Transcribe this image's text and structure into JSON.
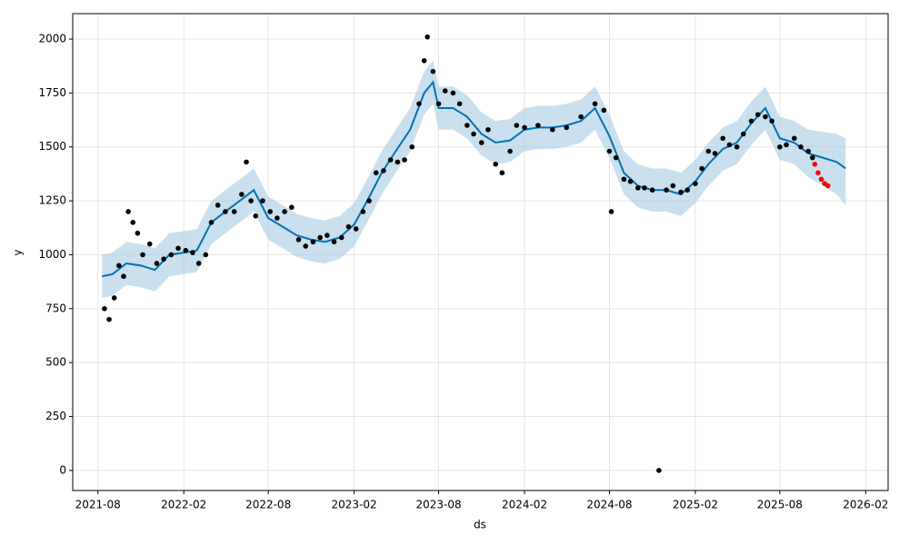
{
  "chart_data": {
    "type": "line",
    "xlabel": "ds",
    "ylabel": "y",
    "grid": true,
    "xlim": [
      "2021-06-08",
      "2026-03-21"
    ],
    "ylim": [
      -93,
      2118
    ],
    "xticks": [
      {
        "value": "2021-08-01",
        "label": "2021-08"
      },
      {
        "value": "2022-02-01",
        "label": "2022-02"
      },
      {
        "value": "2022-08-01",
        "label": "2022-08"
      },
      {
        "value": "2023-02-01",
        "label": "2023-02"
      },
      {
        "value": "2023-08-01",
        "label": "2023-08"
      },
      {
        "value": "2024-02-01",
        "label": "2024-02"
      },
      {
        "value": "2024-08-01",
        "label": "2024-08"
      },
      {
        "value": "2025-02-01",
        "label": "2025-02"
      },
      {
        "value": "2025-08-01",
        "label": "2025-08"
      },
      {
        "value": "2026-02-01",
        "label": "2026-02"
      }
    ],
    "yticks": [
      0,
      250,
      500,
      750,
      1000,
      1250,
      1500,
      1750,
      2000
    ],
    "forecast": {
      "color": "#0072b2",
      "band_color": "#a6cbe3",
      "x": [
        "2021-08-10",
        "2021-09-01",
        "2021-10-01",
        "2021-11-01",
        "2021-12-01",
        "2022-01-01",
        "2022-02-01",
        "2022-03-01",
        "2022-04-01",
        "2022-05-01",
        "2022-06-01",
        "2022-07-01",
        "2022-08-01",
        "2022-09-01",
        "2022-10-01",
        "2022-11-01",
        "2022-12-01",
        "2023-01-01",
        "2023-02-01",
        "2023-03-01",
        "2023-04-01",
        "2023-05-01",
        "2023-06-01",
        "2023-07-01",
        "2023-07-20",
        "2023-08-01",
        "2023-09-01",
        "2023-10-01",
        "2023-11-01",
        "2023-12-01",
        "2024-01-01",
        "2024-02-01",
        "2024-03-01",
        "2024-04-01",
        "2024-05-01",
        "2024-06-01",
        "2024-07-01",
        "2024-08-01",
        "2024-09-01",
        "2024-10-01",
        "2024-11-01",
        "2024-12-01",
        "2025-01-01",
        "2025-02-01",
        "2025-03-01",
        "2025-04-01",
        "2025-05-01",
        "2025-06-01",
        "2025-07-01",
        "2025-08-01",
        "2025-09-01",
        "2025-10-01",
        "2025-11-01",
        "2025-12-01",
        "2025-12-20"
      ],
      "values": [
        900,
        910,
        960,
        950,
        930,
        1000,
        1010,
        1020,
        1150,
        1200,
        1250,
        1300,
        1170,
        1130,
        1090,
        1070,
        1060,
        1080,
        1140,
        1250,
        1380,
        1480,
        1580,
        1750,
        1800,
        1680,
        1680,
        1640,
        1560,
        1520,
        1530,
        1580,
        1590,
        1590,
        1600,
        1620,
        1680,
        1550,
        1380,
        1320,
        1300,
        1300,
        1280,
        1340,
        1420,
        1490,
        1520,
        1610,
        1680,
        1540,
        1520,
        1470,
        1450,
        1430,
        1400
      ],
      "lower": [
        800,
        810,
        860,
        850,
        830,
        900,
        910,
        920,
        1050,
        1100,
        1150,
        1200,
        1070,
        1030,
        990,
        970,
        960,
        980,
        1040,
        1150,
        1280,
        1380,
        1480,
        1650,
        1700,
        1580,
        1580,
        1540,
        1460,
        1420,
        1430,
        1480,
        1490,
        1490,
        1500,
        1520,
        1580,
        1450,
        1280,
        1220,
        1200,
        1200,
        1180,
        1240,
        1320,
        1390,
        1420,
        1510,
        1580,
        1440,
        1420,
        1360,
        1320,
        1280,
        1230
      ],
      "upper": [
        1000,
        1010,
        1060,
        1050,
        1030,
        1100,
        1110,
        1120,
        1250,
        1300,
        1350,
        1400,
        1270,
        1230,
        1190,
        1170,
        1160,
        1180,
        1240,
        1350,
        1480,
        1580,
        1680,
        1850,
        1900,
        1780,
        1780,
        1740,
        1660,
        1620,
        1630,
        1680,
        1690,
        1690,
        1700,
        1720,
        1780,
        1650,
        1480,
        1420,
        1400,
        1400,
        1380,
        1440,
        1520,
        1590,
        1620,
        1710,
        1780,
        1640,
        1620,
        1580,
        1570,
        1560,
        1540
      ]
    },
    "observed": {
      "color": "#000000",
      "x": [
        "2021-08-15",
        "2021-08-25",
        "2021-09-05",
        "2021-09-15",
        "2021-09-25",
        "2021-10-05",
        "2021-10-15",
        "2021-10-25",
        "2021-11-05",
        "2021-11-20",
        "2021-12-05",
        "2021-12-20",
        "2022-01-05",
        "2022-01-20",
        "2022-02-05",
        "2022-02-20",
        "2022-03-05",
        "2022-03-20",
        "2022-04-01",
        "2022-04-15",
        "2022-05-01",
        "2022-05-20",
        "2022-06-05",
        "2022-06-15",
        "2022-06-25",
        "2022-07-05",
        "2022-07-20",
        "2022-08-05",
        "2022-08-20",
        "2022-09-05",
        "2022-09-20",
        "2022-10-05",
        "2022-10-20",
        "2022-11-05",
        "2022-11-20",
        "2022-12-05",
        "2022-12-20",
        "2023-01-05",
        "2023-01-20",
        "2023-02-05",
        "2023-02-20",
        "2023-03-05",
        "2023-03-20",
        "2023-04-05",
        "2023-04-20",
        "2023-05-05",
        "2023-05-20",
        "2023-06-05",
        "2023-06-20",
        "2023-07-01",
        "2023-07-08",
        "2023-07-20",
        "2023-08-01",
        "2023-08-15",
        "2023-09-01",
        "2023-09-15",
        "2023-10-01",
        "2023-10-15",
        "2023-11-01",
        "2023-11-15",
        "2023-12-01",
        "2023-12-15",
        "2024-01-01",
        "2024-01-15",
        "2024-02-01",
        "2024-03-01",
        "2024-04-01",
        "2024-05-01",
        "2024-06-01",
        "2024-07-01",
        "2024-07-20",
        "2024-08-01",
        "2024-08-05",
        "2024-08-15",
        "2024-09-01",
        "2024-09-15",
        "2024-10-01",
        "2024-10-15",
        "2024-11-01",
        "2024-11-15",
        "2024-12-01",
        "2024-12-15",
        "2025-01-01",
        "2025-01-15",
        "2025-02-01",
        "2025-02-15",
        "2025-03-01",
        "2025-03-15",
        "2025-04-01",
        "2025-04-15",
        "2025-05-01",
        "2025-05-15",
        "2025-06-01",
        "2025-06-15",
        "2025-07-01",
        "2025-07-15",
        "2025-08-01",
        "2025-08-15",
        "2025-09-01",
        "2025-09-15",
        "2025-10-01",
        "2025-10-10"
      ],
      "values": [
        750,
        700,
        800,
        950,
        900,
        1200,
        1150,
        1100,
        1000,
        1050,
        960,
        980,
        1000,
        1030,
        1020,
        1010,
        960,
        1000,
        1150,
        1230,
        1200,
        1200,
        1280,
        1430,
        1250,
        1180,
        1250,
        1200,
        1170,
        1200,
        1220,
        1070,
        1040,
        1060,
        1080,
        1090,
        1060,
        1080,
        1130,
        1120,
        1200,
        1250,
        1380,
        1390,
        1440,
        1430,
        1440,
        1500,
        1700,
        1900,
        2010,
        1850,
        1700,
        1760,
        1750,
        1700,
        1600,
        1560,
        1520,
        1580,
        1420,
        1380,
        1480,
        1600,
        1590,
        1600,
        1580,
        1590,
        1640,
        1700,
        1670,
        1480,
        1200,
        1450,
        1350,
        1340,
        1310,
        1310,
        1300,
        0,
        1300,
        1320,
        1290,
        1300,
        1330,
        1400,
        1480,
        1470,
        1540,
        1510,
        1500,
        1560,
        1620,
        1650,
        1640,
        1620,
        1500,
        1510,
        1540,
        1500,
        1480,
        1450
      ]
    },
    "highlight": {
      "color": "#ff0000",
      "x": [
        "2025-10-15",
        "2025-10-22",
        "2025-10-29",
        "2025-11-05",
        "2025-11-12"
      ],
      "values": [
        1420,
        1380,
        1350,
        1330,
        1320
      ]
    }
  }
}
